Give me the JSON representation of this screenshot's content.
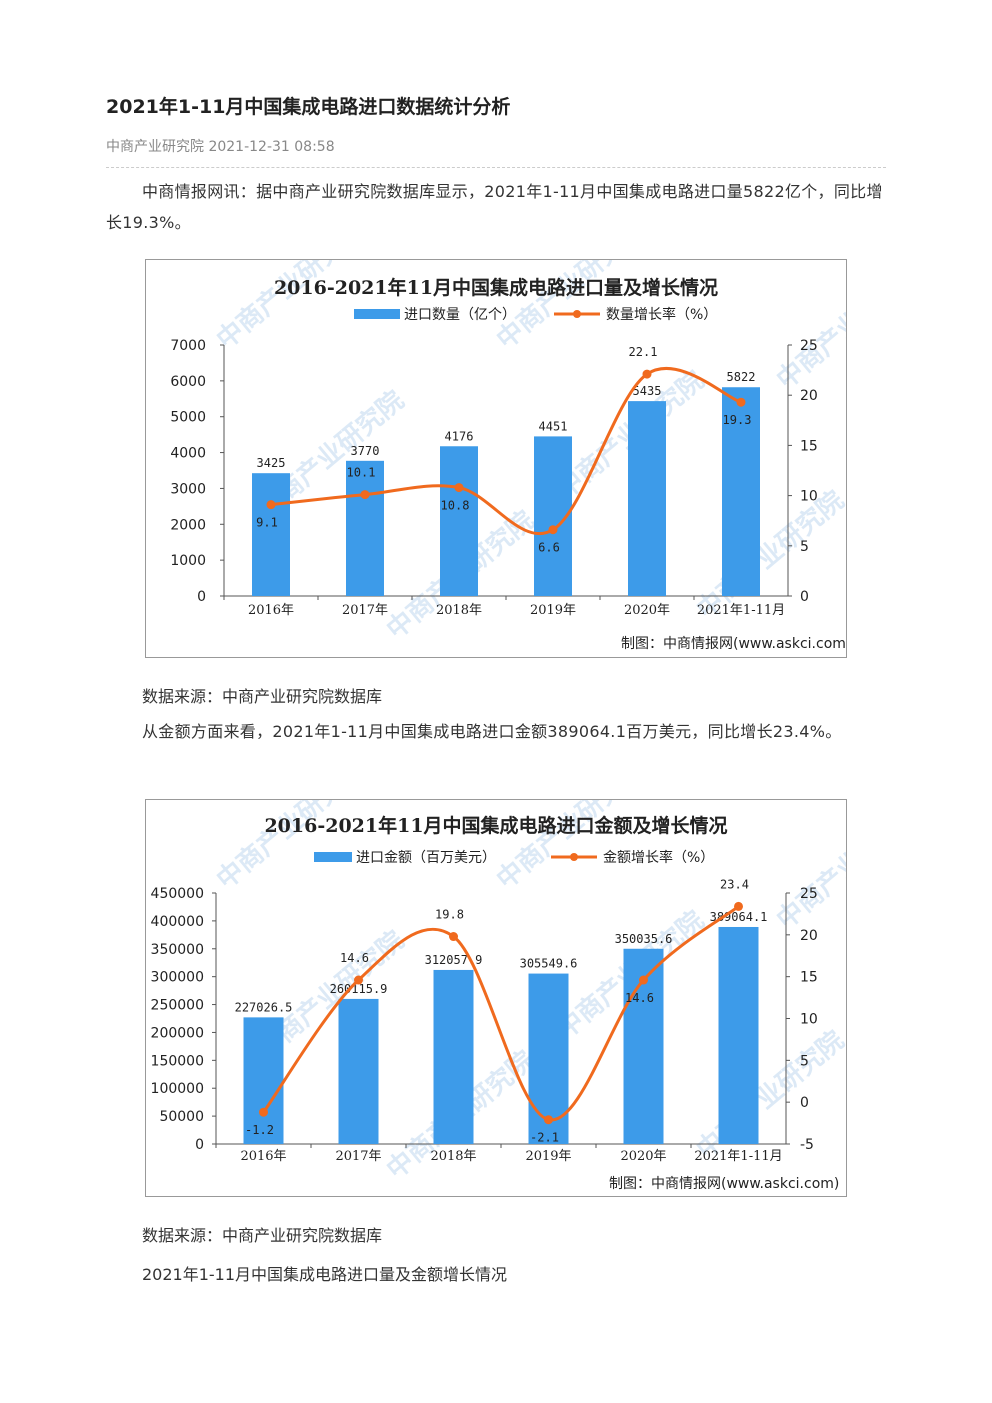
{
  "article": {
    "title": "2021年1-11月中国集成电路进口数据统计分析",
    "meta": "中商产业研究院 2021-12-31 08:58",
    "para1": "中商情报网讯：据中商产业研究院数据库显示，2021年1-11月中国集成电路进口量5822亿个，同比增长19.3%。",
    "source1": "数据来源：中商产业研究院数据库",
    "para2": "从金额方面来看，2021年1-11月中国集成电路进口金额389064.1百万美元，同比增长23.4%。",
    "source2": "数据来源：中商产业研究院数据库",
    "para3": "2021年1-11月中国集成电路进口量及金额增长情况"
  },
  "colors": {
    "bar": "#3d9be9",
    "line": "#f06a1e",
    "watermark": "#9ec3e6"
  },
  "watermark_text": "中商产业研究院",
  "chart_data": [
    {
      "type": "bar",
      "title": "2016-2021年11月中国集成电路进口量及增长情况",
      "credit": "制图：中商情报网(www.askci.com)",
      "categories": [
        "2016年",
        "2017年",
        "2018年",
        "2019年",
        "2020年",
        "2021年1-11月"
      ],
      "series": [
        {
          "name": "进口数量（亿个）",
          "type": "bar",
          "axis": "left",
          "values": [
            3425,
            3770,
            4176,
            4451,
            5435,
            5822
          ],
          "labels": [
            "3425",
            "3770",
            "4176",
            "4451",
            "5435",
            "5822"
          ]
        },
        {
          "name": "数量增长率（%）",
          "type": "line",
          "axis": "right",
          "values": [
            9.1,
            10.1,
            10.8,
            6.6,
            22.1,
            19.3
          ],
          "labels": [
            "9.1",
            "10.1",
            "10.8",
            "6.6",
            "22.1",
            "19.3"
          ]
        }
      ],
      "ylim_left": [
        0,
        7000
      ],
      "yticks_left": [
        "0",
        "1000",
        "2000",
        "3000",
        "4000",
        "5000",
        "6000",
        "7000"
      ],
      "ylim_right": [
        0,
        25
      ],
      "yticks_right": [
        "0",
        "5",
        "10",
        "15",
        "20",
        "25"
      ],
      "legend": "top-center",
      "grid": false
    },
    {
      "type": "bar",
      "title": "2016-2021年11月中国集成电路进口金额及增长情况",
      "credit": "制图：中商情报网(www.askci.com)",
      "categories": [
        "2016年",
        "2017年",
        "2018年",
        "2019年",
        "2020年",
        "2021年1-11月"
      ],
      "series": [
        {
          "name": "进口金额（百万美元）",
          "type": "bar",
          "axis": "left",
          "values": [
            227026.5,
            260115.9,
            312057.9,
            305549.6,
            350035.6,
            389064.1
          ],
          "labels": [
            "227026.5",
            "260115.9",
            "312057.9",
            "305549.6",
            "350035.6",
            "389064.1"
          ]
        },
        {
          "name": "金额增长率（%）",
          "type": "line",
          "axis": "right",
          "values": [
            -1.2,
            14.6,
            19.8,
            -2.1,
            14.6,
            23.4
          ],
          "labels": [
            "-1.2",
            "14.6",
            "19.8",
            "-2.1",
            "14.6",
            "23.4"
          ]
        }
      ],
      "ylim_left": [
        0,
        450000
      ],
      "yticks_left": [
        "0",
        "50000",
        "100000",
        "150000",
        "200000",
        "250000",
        "300000",
        "350000",
        "400000",
        "450000"
      ],
      "ylim_right": [
        -5,
        25
      ],
      "yticks_right": [
        "-5",
        "0",
        "5",
        "10",
        "15",
        "20",
        "25"
      ],
      "legend": "top-center",
      "grid": false
    }
  ]
}
